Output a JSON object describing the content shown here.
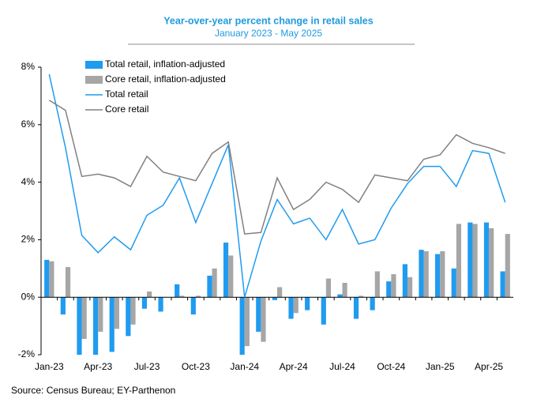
{
  "chart_data": {
    "type": "bar",
    "title": "Year-over-year percent change in retail sales",
    "subtitle": "January 2023 - May 2025",
    "source": "Source: Census Bureau; EY-Parthenon",
    "categories": [
      "Jan-23",
      null,
      null,
      "Apr-23",
      null,
      null,
      "Jul-23",
      null,
      null,
      "Oct-23",
      null,
      null,
      "Jan-24",
      null,
      null,
      "Apr-24",
      null,
      null,
      "Jul-24",
      null,
      null,
      "Oct-24",
      null,
      null,
      "Jan-25",
      null,
      null,
      "Apr-25",
      null
    ],
    "series": [
      {
        "name": "Total retail, inflation-adjusted",
        "type": "bar",
        "color": "#1f9bf0",
        "values": [
          1.3,
          -0.6,
          -2.0,
          -2.0,
          -1.9,
          -1.35,
          -0.4,
          -0.5,
          0.45,
          -0.6,
          0.75,
          1.9,
          -2.0,
          -1.2,
          -0.1,
          -0.75,
          -0.45,
          -0.95,
          0.1,
          -0.75,
          -0.45,
          0.55,
          1.15,
          1.65,
          1.5,
          1.0,
          2.6,
          2.6,
          0.9
        ]
      },
      {
        "name": "Core retail, inflation-adjusted",
        "type": "bar",
        "color": "#a6a6a6",
        "values": [
          1.25,
          1.05,
          -1.45,
          -1.2,
          -1.1,
          -0.95,
          0.2,
          0.0,
          0.05,
          0.05,
          1.0,
          1.45,
          -1.7,
          -1.55,
          0.35,
          -0.55,
          0.0,
          0.65,
          0.5,
          0.05,
          0.9,
          0.8,
          0.7,
          1.6,
          1.6,
          2.55,
          2.55,
          2.4,
          2.2
        ]
      },
      {
        "name": "Total retail",
        "type": "line",
        "color": "#1f9bf0",
        "values": [
          7.75,
          5.2,
          2.15,
          1.55,
          2.1,
          1.65,
          2.85,
          3.2,
          4.15,
          2.6,
          3.95,
          5.3,
          0.0,
          1.95,
          3.4,
          2.55,
          2.75,
          2.0,
          3.05,
          1.85,
          2.0,
          3.1,
          3.95,
          4.55,
          4.55,
          3.85,
          5.1,
          5.0,
          3.3
        ]
      },
      {
        "name": "Core retail",
        "type": "line",
        "color": "#808080",
        "values": [
          6.85,
          6.5,
          4.2,
          4.28,
          4.15,
          3.85,
          4.9,
          4.35,
          4.2,
          4.05,
          5.0,
          5.4,
          2.2,
          2.25,
          4.15,
          3.05,
          3.4,
          4.0,
          3.75,
          3.3,
          4.25,
          4.15,
          4.05,
          4.8,
          4.95,
          5.65,
          5.35,
          5.2,
          5.0
        ]
      }
    ],
    "ylim": [
      -2,
      8
    ],
    "yticks": [
      {
        "value": -2,
        "label": "-2%"
      },
      {
        "value": 0,
        "label": "0%"
      },
      {
        "value": 2,
        "label": "2%"
      },
      {
        "value": 4,
        "label": "4%"
      },
      {
        "value": 6,
        "label": "6%"
      },
      {
        "value": 8,
        "label": "8%"
      }
    ],
    "grid": false,
    "legend": "top-left"
  }
}
